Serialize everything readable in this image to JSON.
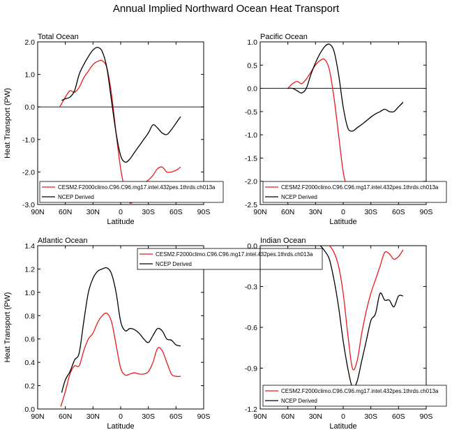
{
  "title": "Annual Implied Northward Ocean Heat Transport",
  "colors": {
    "model": "#e8191c",
    "ncep": "#000000"
  },
  "chart_data": [
    {
      "type": "line",
      "title": "Total Ocean",
      "xlabel": "Latitude",
      "ylabel": "Heat Transport (PW)",
      "xlim": [
        90,
        -90
      ],
      "ylim": [
        -3.0,
        2.0
      ],
      "xtick_values": [
        90,
        60,
        30,
        0,
        -30,
        -60,
        -90
      ],
      "xtick_labels": [
        "90N",
        "60N",
        "30N",
        "0",
        "30S",
        "60S",
        "90S"
      ],
      "ytick_values": [
        2.0,
        1.0,
        0.0,
        -1.0,
        -2.0,
        -3.0
      ],
      "ytick_labels": [
        "2.0",
        "1.0",
        "0.0",
        "-1.0",
        "-2.0",
        "-3.0"
      ],
      "zero_line": true,
      "legend_position": "bottom",
      "series": [
        {
          "name": "CESM2.F2000climo.C96.C96.mg17.intel.432pes.1thrds.ch013a",
          "color": "#e8191c",
          "x": [
            66,
            60,
            55,
            50,
            45,
            40,
            35,
            30,
            25,
            20,
            15,
            10,
            5,
            0,
            -5,
            -10,
            -15,
            -20,
            -25,
            -30,
            -35,
            -40,
            -45,
            -50,
            -55,
            -60,
            -65
          ],
          "y": [
            0.0,
            0.3,
            0.5,
            0.45,
            0.6,
            0.9,
            1.1,
            1.3,
            1.4,
            1.42,
            1.2,
            0.4,
            -0.8,
            -1.9,
            -2.6,
            -2.95,
            -2.85,
            -2.6,
            -2.35,
            -2.25,
            -2.1,
            -1.9,
            -1.85,
            -2.0,
            -2.0,
            -1.95,
            -1.85
          ]
        },
        {
          "name": "NCEP Derived",
          "color": "#000000",
          "x": [
            64,
            60,
            55,
            50,
            45,
            40,
            35,
            30,
            25,
            20,
            15,
            10,
            5,
            0,
            -5,
            -10,
            -15,
            -20,
            -25,
            -30,
            -35,
            -40,
            -45,
            -50,
            -55,
            -60,
            -65
          ],
          "y": [
            0.2,
            0.25,
            0.3,
            0.5,
            1.0,
            1.3,
            1.55,
            1.75,
            1.83,
            1.7,
            1.2,
            0.2,
            -0.8,
            -1.5,
            -1.7,
            -1.6,
            -1.4,
            -1.2,
            -1.0,
            -0.8,
            -0.55,
            -0.65,
            -0.8,
            -0.85,
            -0.7,
            -0.5,
            -0.3
          ]
        }
      ]
    },
    {
      "type": "line",
      "title": "Pacific Ocean",
      "xlabel": "Latitude",
      "ylabel": "",
      "xlim": [
        90,
        -90
      ],
      "ylim": [
        -2.5,
        1.0
      ],
      "xtick_values": [
        90,
        60,
        30,
        0,
        -30,
        -60,
        -90
      ],
      "xtick_labels": [
        "90N",
        "60N",
        "30N",
        "0",
        "30S",
        "60S",
        "90S"
      ],
      "ytick_values": [
        1.0,
        0.5,
        0.0,
        -0.5,
        -1.0,
        -1.5,
        -2.0,
        -2.5
      ],
      "ytick_labels": [
        "1.0",
        "0.5",
        "0.0",
        "-0.5",
        "-1.0",
        "-1.5",
        "-2.0",
        "-2.5"
      ],
      "zero_line": true,
      "legend_position": "bottom",
      "series": [
        {
          "name": "CESM2.F2000climo.C96.C96.mg17.intel.432pes.1thrds.ch013a",
          "color": "#e8191c",
          "x": [
            60,
            55,
            50,
            45,
            40,
            35,
            30,
            25,
            20,
            15,
            10,
            5,
            0,
            -5,
            -10,
            -15,
            -20,
            -25,
            -30,
            -35,
            -40,
            -45,
            -50,
            -55,
            -60,
            -65
          ],
          "y": [
            0.0,
            0.1,
            0.15,
            0.1,
            0.2,
            0.35,
            0.5,
            0.6,
            0.62,
            0.4,
            -0.2,
            -1.0,
            -1.8,
            -2.2,
            -2.38,
            -2.35,
            -2.3,
            -2.28,
            -2.3,
            -2.32,
            -2.3,
            -2.35,
            -2.38,
            -2.35,
            -2.3,
            -2.2
          ]
        },
        {
          "name": "NCEP Derived",
          "color": "#000000",
          "x": [
            60,
            55,
            50,
            45,
            40,
            35,
            30,
            25,
            20,
            15,
            10,
            5,
            0,
            -5,
            -10,
            -15,
            -20,
            -25,
            -30,
            -35,
            -40,
            -45,
            -50,
            -55,
            -60,
            -65
          ],
          "y": [
            0.0,
            0.0,
            -0.05,
            -0.1,
            0.0,
            0.3,
            0.55,
            0.75,
            0.9,
            0.95,
            0.8,
            0.3,
            -0.4,
            -0.85,
            -0.92,
            -0.85,
            -0.78,
            -0.7,
            -0.62,
            -0.55,
            -0.5,
            -0.45,
            -0.5,
            -0.5,
            -0.4,
            -0.3
          ]
        }
      ]
    },
    {
      "type": "line",
      "title": "Atlantic Ocean",
      "xlabel": "Latitude",
      "ylabel": "Heat Transport (PW)",
      "xlim": [
        90,
        -90
      ],
      "ylim": [
        0.0,
        1.4
      ],
      "xtick_values": [
        90,
        60,
        30,
        0,
        -30,
        -60,
        -90
      ],
      "xtick_labels": [
        "90N",
        "60N",
        "30N",
        "0",
        "30S",
        "60S",
        "90S"
      ],
      "ytick_values": [
        1.4,
        1.2,
        1.0,
        0.8,
        0.6,
        0.4,
        0.2,
        0.0
      ],
      "ytick_labels": [
        "1.4",
        "1.2",
        "1.0",
        "0.8",
        "0.6",
        "0.4",
        "0.2",
        "0.0"
      ],
      "zero_line": false,
      "legend_position": "top",
      "series": [
        {
          "name": "CESM2.F2000climo.C96.C96.mg17.intel.432pes.1thrds.ch013a",
          "color": "#e8191c",
          "x": [
            65,
            60,
            55,
            50,
            45,
            40,
            35,
            30,
            25,
            20,
            15,
            10,
            5,
            0,
            -5,
            -10,
            -15,
            -20,
            -25,
            -30,
            -35,
            -40,
            -45,
            -50,
            -55,
            -60,
            -65
          ],
          "y": [
            0.02,
            0.15,
            0.3,
            0.37,
            0.37,
            0.5,
            0.6,
            0.65,
            0.74,
            0.8,
            0.82,
            0.75,
            0.55,
            0.35,
            0.29,
            0.3,
            0.31,
            0.3,
            0.3,
            0.32,
            0.4,
            0.52,
            0.5,
            0.4,
            0.3,
            0.28,
            0.28
          ]
        },
        {
          "name": "NCEP Derived",
          "color": "#000000",
          "x": [
            64,
            60,
            55,
            50,
            45,
            40,
            35,
            30,
            25,
            20,
            15,
            10,
            5,
            0,
            -5,
            -10,
            -15,
            -20,
            -25,
            -30,
            -35,
            -40,
            -45,
            -50,
            -55,
            -60,
            -65
          ],
          "y": [
            0.14,
            0.25,
            0.32,
            0.42,
            0.48,
            0.75,
            1.0,
            1.12,
            1.18,
            1.2,
            1.21,
            1.16,
            1.0,
            0.75,
            0.67,
            0.69,
            0.68,
            0.65,
            0.6,
            0.57,
            0.63,
            0.69,
            0.67,
            0.6,
            0.59,
            0.55,
            0.54
          ]
        }
      ]
    },
    {
      "type": "line",
      "title": "Indian Ocean",
      "xlabel": "Latitude",
      "ylabel": "",
      "xlim": [
        90,
        -90
      ],
      "ylim": [
        -1.2,
        0.0
      ],
      "xtick_values": [
        90,
        60,
        30,
        0,
        -30,
        -60,
        -90
      ],
      "xtick_labels": [
        "90N",
        "60N",
        "30N",
        "0",
        "30S",
        "60S",
        "90S"
      ],
      "ytick_values": [
        0.0,
        -0.3,
        -0.6,
        -0.9,
        -1.2
      ],
      "ytick_labels": [
        "0.0",
        "-0.3",
        "-0.6",
        "-0.9",
        "-1.2"
      ],
      "zero_line": true,
      "legend_position": "bottom",
      "series": [
        {
          "name": "CESM2.F2000climo.C96.C96.mg17.intel.432pes.1thrds.ch013a",
          "color": "#e8191c",
          "x": [
            25,
            20,
            15,
            10,
            5,
            0,
            -5,
            -10,
            -15,
            -20,
            -25,
            -30,
            -35,
            -40,
            -45,
            -50,
            -55,
            -60,
            -65
          ],
          "y": [
            0.0,
            0.01,
            0.0,
            -0.05,
            -0.15,
            -0.35,
            -0.65,
            -0.9,
            -0.85,
            -0.65,
            -0.48,
            -0.35,
            -0.25,
            -0.15,
            -0.05,
            -0.06,
            -0.1,
            -0.08,
            -0.03
          ]
        },
        {
          "name": "NCEP Derived",
          "color": "#000000",
          "x": [
            30,
            25,
            20,
            15,
            10,
            5,
            0,
            -5,
            -10,
            -15,
            -20,
            -25,
            -30,
            -35,
            -40,
            -45,
            -50,
            -55,
            -60,
            -65
          ],
          "y": [
            0.0,
            0.0,
            -0.04,
            -0.1,
            -0.25,
            -0.45,
            -0.7,
            -0.9,
            -1.04,
            -1.0,
            -0.85,
            -0.7,
            -0.55,
            -0.5,
            -0.35,
            -0.4,
            -0.4,
            -0.45,
            -0.37,
            -0.37
          ]
        }
      ]
    }
  ]
}
